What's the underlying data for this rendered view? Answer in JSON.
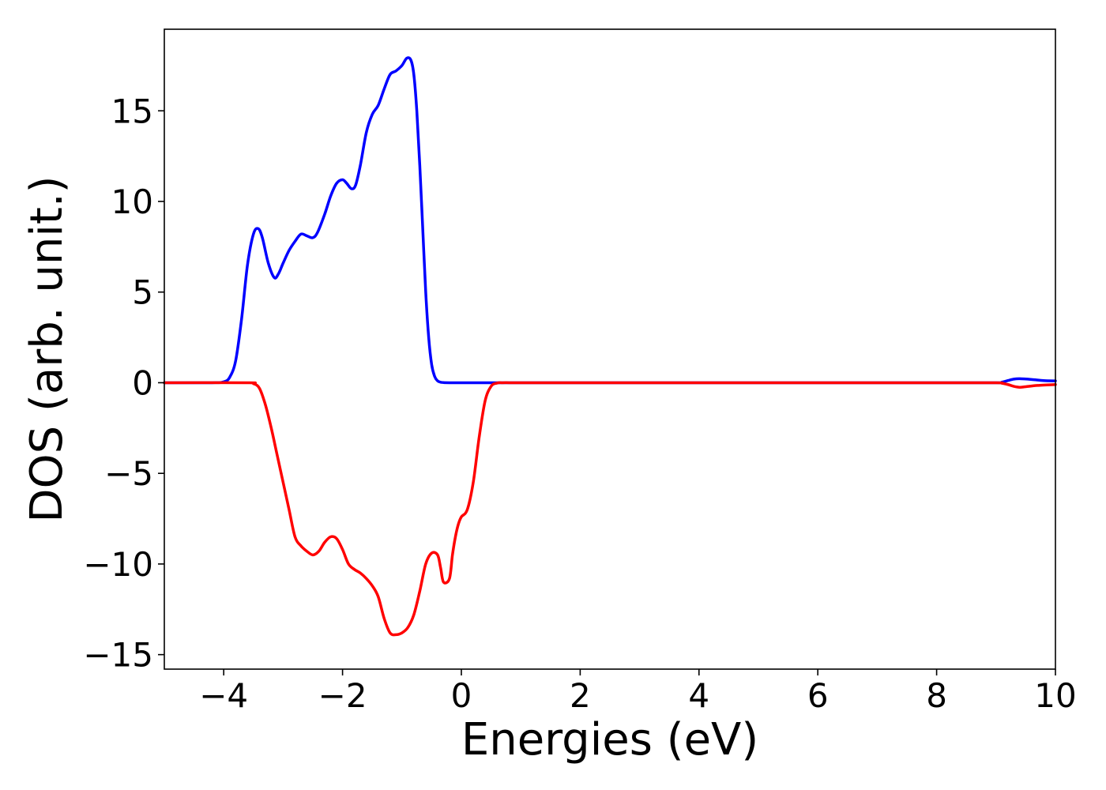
{
  "chart_data": {
    "type": "line",
    "title": "",
    "xlabel": "Energies (eV)",
    "ylabel": "DOS (arb. unit.)",
    "xlim": [
      -5,
      10
    ],
    "ylim": [
      -15.8,
      19.5
    ],
    "xticks": [
      -4,
      -2,
      0,
      2,
      4,
      6,
      8,
      10
    ],
    "xtick_labels": [
      "−4",
      "−2",
      "0",
      "2",
      "4",
      "6",
      "8",
      "10"
    ],
    "yticks": [
      -15,
      -10,
      -5,
      0,
      5,
      10,
      15
    ],
    "ytick_labels": [
      "−15",
      "−10",
      "−5",
      "0",
      "5",
      "10",
      "15"
    ],
    "grid": false,
    "legend": "none",
    "series": [
      {
        "color": "#0000ff",
        "x": [
          -5.0,
          -4.2,
          -4.0,
          -3.9,
          -3.8,
          -3.7,
          -3.6,
          -3.5,
          -3.42,
          -3.35,
          -3.25,
          -3.15,
          -3.08,
          -3.0,
          -2.9,
          -2.8,
          -2.7,
          -2.6,
          -2.5,
          -2.42,
          -2.3,
          -2.2,
          -2.1,
          -2.0,
          -1.93,
          -1.85,
          -1.78,
          -1.7,
          -1.6,
          -1.5,
          -1.4,
          -1.3,
          -1.2,
          -1.1,
          -1.0,
          -0.92,
          -0.85,
          -0.8,
          -0.75,
          -0.7,
          -0.65,
          -0.6,
          -0.55,
          -0.5,
          -0.45,
          -0.4,
          -0.35,
          -0.3,
          -0.2,
          -0.1,
          0.0,
          0.3,
          1.0,
          2.0,
          4.0,
          6.0,
          8.0,
          9.0,
          9.1,
          9.2,
          9.3,
          9.4,
          9.6,
          9.8,
          10.0
        ],
        "y": [
          0.0,
          0.0,
          0.05,
          0.3,
          1.2,
          3.5,
          6.5,
          8.2,
          8.5,
          8.0,
          6.6,
          5.8,
          6.0,
          6.6,
          7.3,
          7.8,
          8.2,
          8.1,
          8.0,
          8.3,
          9.3,
          10.3,
          11.0,
          11.2,
          11.0,
          10.7,
          10.9,
          12.0,
          13.8,
          14.8,
          15.3,
          16.2,
          17.0,
          17.2,
          17.5,
          17.9,
          17.8,
          17.0,
          15.0,
          12.0,
          8.5,
          5.0,
          2.5,
          1.0,
          0.35,
          0.1,
          0.03,
          0.01,
          0.0,
          0.0,
          0.0,
          0.0,
          0.0,
          0.0,
          0.0,
          0.0,
          0.0,
          0.0,
          0.03,
          0.12,
          0.2,
          0.22,
          0.18,
          0.12,
          0.1
        ]
      },
      {
        "color": "#ff0000",
        "x": [
          -5.0,
          -3.6,
          -3.5,
          -3.4,
          -3.3,
          -3.2,
          -3.1,
          -3.0,
          -2.9,
          -2.8,
          -2.7,
          -2.6,
          -2.5,
          -2.4,
          -2.3,
          -2.2,
          -2.1,
          -2.0,
          -1.9,
          -1.8,
          -1.7,
          -1.6,
          -1.5,
          -1.4,
          -1.3,
          -1.2,
          -1.1,
          -1.0,
          -0.9,
          -0.8,
          -0.7,
          -0.6,
          -0.5,
          -0.4,
          -0.35,
          -0.3,
          -0.2,
          -0.15,
          -0.1,
          -0.05,
          0.0,
          0.1,
          0.2,
          0.3,
          0.4,
          0.5,
          0.6,
          0.7,
          0.8,
          0.9,
          1.0,
          2.0,
          4.0,
          6.0,
          8.0,
          9.0,
          9.1,
          9.2,
          9.3,
          9.4,
          9.5,
          9.7,
          10.0
        ],
        "y": [
          0.0,
          0.0,
          -0.05,
          -0.3,
          -1.2,
          -2.5,
          -4.0,
          -5.5,
          -7.0,
          -8.5,
          -9.0,
          -9.3,
          -9.5,
          -9.3,
          -8.8,
          -8.5,
          -8.6,
          -9.2,
          -10.0,
          -10.3,
          -10.5,
          -10.8,
          -11.2,
          -11.8,
          -13.0,
          -13.8,
          -13.9,
          -13.8,
          -13.5,
          -12.8,
          -11.5,
          -10.0,
          -9.4,
          -9.5,
          -10.2,
          -11.0,
          -10.8,
          -9.5,
          -8.5,
          -7.8,
          -7.4,
          -7.0,
          -5.5,
          -3.0,
          -1.0,
          -0.2,
          -0.02,
          0.0,
          0.0,
          0.0,
          0.0,
          0.0,
          0.0,
          0.0,
          0.0,
          0.0,
          -0.03,
          -0.1,
          -0.2,
          -0.25,
          -0.22,
          -0.15,
          -0.1
        ]
      }
    ]
  }
}
